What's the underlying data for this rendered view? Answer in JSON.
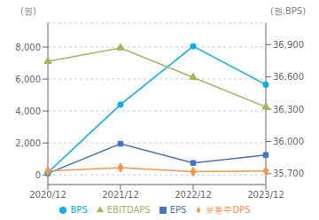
{
  "chart_data": {
    "type": "line",
    "categories": [
      "2020/12",
      "2021/12",
      "2022/12",
      "2023/12"
    ],
    "series": [
      {
        "name": "EPS",
        "color": "#4472c4",
        "marker": "square",
        "values": [
          100,
          1950,
          750,
          1250
        ]
      },
      {
        "name": "BPS",
        "color": "#00b0f0",
        "marker": "circle",
        "values": [
          150,
          4400,
          8050,
          5650
        ]
      },
      {
        "name": "EBITDAPS",
        "color": "#9bbb59",
        "marker": "triangle",
        "values": [
          7100,
          7950,
          6100,
          4250
        ]
      },
      {
        "name": "보통주DPS",
        "color": "#f79646",
        "marker": "diamond",
        "values": [
          250,
          450,
          200,
          250
        ]
      }
    ],
    "y_label": "(원)",
    "y2_label": "(원,BPS)",
    "ylim": [
      -600,
      9500
    ],
    "yticks": [
      0,
      {
        "value": 2000,
        "label": "2,000"
      },
      {
        "value": 4000,
        "label": "4,000"
      },
      {
        "value": 6000,
        "label": "6,000"
      },
      {
        "value": 8000,
        "label": "8,000"
      }
    ],
    "y2lim": [
      35600,
      37100
    ],
    "y2ticks": [
      {
        "value": 35700,
        "label": "35,700"
      },
      {
        "value": 36000,
        "label": "36,000"
      },
      {
        "value": 36300,
        "label": "36,300"
      },
      {
        "value": 36600,
        "label": "36,600"
      },
      {
        "value": 36900,
        "label": "36,900"
      }
    ],
    "grid": true,
    "legend": "bottom"
  }
}
